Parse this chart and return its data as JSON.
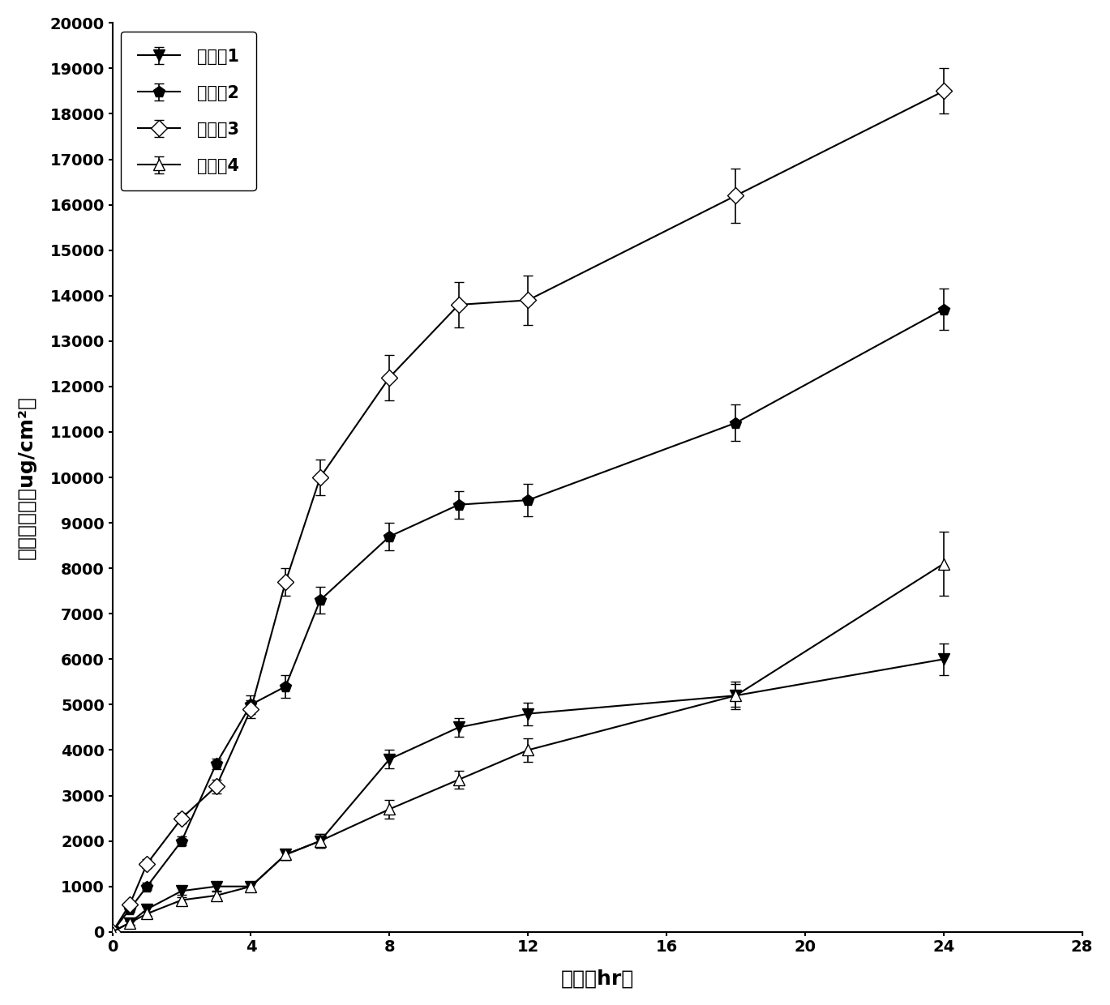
{
  "series": {
    "ex1": {
      "label": "实施例1",
      "x": [
        0,
        0.5,
        1,
        2,
        3,
        4,
        5,
        6,
        8,
        10,
        12,
        18,
        24
      ],
      "y": [
        0,
        200,
        500,
        900,
        1000,
        1000,
        1700,
        2000,
        3800,
        4500,
        4800,
        5200,
        6000
      ],
      "yerr": [
        0,
        50,
        60,
        80,
        90,
        100,
        120,
        150,
        200,
        200,
        250,
        250,
        350
      ],
      "marker": "v",
      "filled": true,
      "color": "#000000"
    },
    "ex2": {
      "label": "实施例2",
      "x": [
        0,
        0.5,
        1,
        2,
        3,
        4,
        5,
        6,
        8,
        10,
        12,
        18,
        24
      ],
      "y": [
        0,
        500,
        1000,
        2000,
        3700,
        5000,
        5400,
        7300,
        8700,
        9400,
        9500,
        11200,
        13700
      ],
      "yerr": [
        0,
        60,
        80,
        100,
        120,
        200,
        250,
        300,
        300,
        300,
        350,
        400,
        450
      ],
      "marker": "p",
      "filled": true,
      "color": "#000000"
    },
    "ex3": {
      "label": "实施例3",
      "x": [
        0,
        0.5,
        1,
        2,
        3,
        4,
        5,
        6,
        8,
        10,
        12,
        18,
        24
      ],
      "y": [
        0,
        600,
        1500,
        2500,
        3200,
        4900,
        7700,
        10000,
        12200,
        13800,
        13900,
        16200,
        18500
      ],
      "yerr": [
        0,
        80,
        100,
        120,
        150,
        200,
        300,
        400,
        500,
        500,
        550,
        600,
        500
      ],
      "marker": "D",
      "filled": false,
      "color": "#000000"
    },
    "ex4": {
      "label": "实施例4",
      "x": [
        0,
        0.5,
        1,
        2,
        3,
        4,
        5,
        6,
        8,
        10,
        12,
        18,
        24
      ],
      "y": [
        0,
        200,
        400,
        700,
        800,
        1000,
        1700,
        2000,
        2700,
        3350,
        4000,
        5200,
        8100
      ],
      "yerr": [
        0,
        40,
        50,
        60,
        80,
        100,
        120,
        150,
        200,
        200,
        250,
        300,
        700
      ],
      "marker": "^",
      "filled": false,
      "color": "#000000"
    }
  },
  "xlabel": "时间（hr）",
  "ylabel": "累积渗透量（ug/cm²）",
  "xlim": [
    0,
    28
  ],
  "ylim": [
    0,
    20000
  ],
  "xticks": [
    0,
    4,
    8,
    12,
    16,
    20,
    24,
    28
  ],
  "yticks": [
    0,
    1000,
    2000,
    3000,
    4000,
    5000,
    6000,
    7000,
    8000,
    9000,
    10000,
    11000,
    12000,
    13000,
    14000,
    15000,
    16000,
    17000,
    18000,
    19000,
    20000
  ],
  "legend_loc": "upper left",
  "background_color": "#ffffff",
  "line_color": "#000000",
  "line_width": 1.5,
  "marker_size": 10,
  "capsize": 4,
  "elinewidth": 1.2,
  "font_size_tick": 14,
  "font_size_label": 18,
  "font_size_legend": 15
}
